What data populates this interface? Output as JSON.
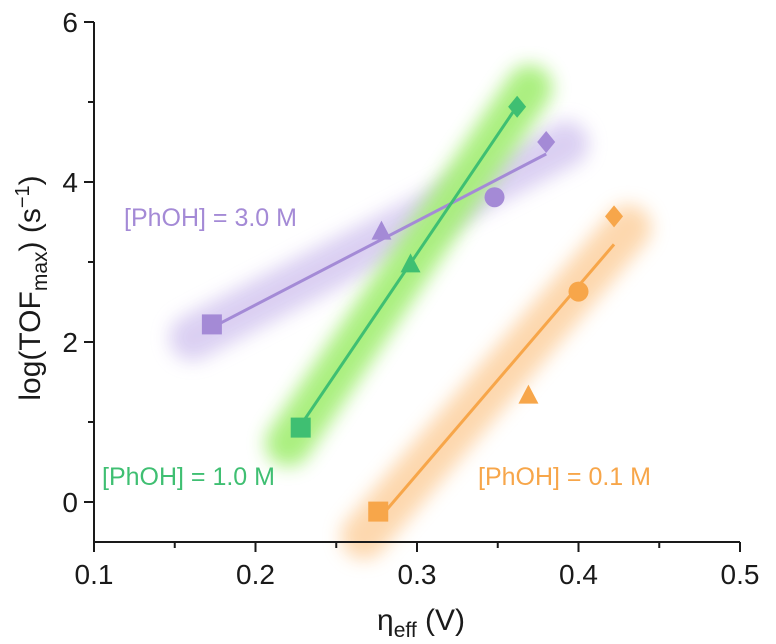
{
  "chart_data": {
    "type": "scatter",
    "xlabel": {
      "main": "η",
      "sub": "eff",
      "unit": " (V)"
    },
    "ylabel": {
      "main": "log(TOF",
      "sub": "max",
      "unit": ") (s",
      "sup": "−1",
      "end": ")"
    },
    "xlim": [
      0.1,
      0.5
    ],
    "ylim": [
      -0.5,
      6
    ],
    "xticks": [
      0.1,
      0.2,
      0.3,
      0.4,
      0.5
    ],
    "xtick_labels": [
      "0.1",
      "0.2",
      "0.3",
      "0.4",
      "0.5"
    ],
    "yticks": [
      0,
      2,
      4,
      6
    ],
    "ytick_labels": [
      "0",
      "2",
      "4",
      "6"
    ],
    "grid": false,
    "series": [
      {
        "name": "[PhOH] = 3.0 M",
        "color": "#a48ad6",
        "glow": "#d9cef2",
        "points": [
          {
            "x": 0.173,
            "y": 2.22,
            "marker": "square"
          },
          {
            "x": 0.278,
            "y": 3.38,
            "marker": "triangle"
          },
          {
            "x": 0.348,
            "y": 3.81,
            "marker": "circle"
          },
          {
            "x": 0.38,
            "y": 4.5,
            "marker": "diamond"
          }
        ],
        "fit": {
          "x": [
            0.173,
            0.38
          ],
          "y": [
            2.18,
            4.35
          ]
        }
      },
      {
        "name": "[PhOH] = 1.0 M",
        "color": "#3fbf72",
        "glow": "#a7ef7a",
        "points": [
          {
            "x": 0.228,
            "y": 0.93,
            "marker": "square"
          },
          {
            "x": 0.296,
            "y": 2.97,
            "marker": "triangle"
          },
          {
            "x": 0.362,
            "y": 4.94,
            "marker": "diamond"
          }
        ],
        "fit": {
          "x": [
            0.228,
            0.362
          ],
          "y": [
            0.96,
            4.95
          ]
        }
      },
      {
        "name": "[PhOH] = 0.1 M",
        "color": "#f7a64a",
        "glow": "#fdd6aa",
        "points": [
          {
            "x": 0.276,
            "y": -0.12,
            "marker": "square"
          },
          {
            "x": 0.369,
            "y": 1.33,
            "marker": "triangle"
          },
          {
            "x": 0.4,
            "y": 2.63,
            "marker": "circle"
          },
          {
            "x": 0.422,
            "y": 3.57,
            "marker": "diamond"
          }
        ],
        "fit": {
          "x": [
            0.276,
            0.422
          ],
          "y": [
            -0.22,
            3.22
          ]
        }
      }
    ]
  }
}
